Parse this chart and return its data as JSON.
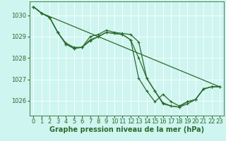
{
  "background_color": "#cef5f0",
  "grid_color": "#ffffff",
  "line_color": "#2d6a2d",
  "xlabel": "Graphe pression niveau de la mer (hPa)",
  "xlabel_fontsize": 7,
  "ylabel_fontsize": 6,
  "tick_fontsize": 6,
  "xlim": [
    -0.5,
    23.5
  ],
  "ylim": [
    1025.3,
    1030.65
  ],
  "yticks": [
    1026,
    1027,
    1028,
    1029,
    1030
  ],
  "xticks": [
    0,
    1,
    2,
    3,
    4,
    5,
    6,
    7,
    8,
    9,
    10,
    11,
    12,
    13,
    14,
    15,
    16,
    17,
    18,
    19,
    20,
    21,
    22,
    23
  ],
  "series": [
    {
      "x": [
        0,
        1,
        2,
        3,
        4,
        5,
        6,
        7,
        8,
        9,
        10,
        11,
        12,
        13,
        14,
        15,
        16,
        17,
        18,
        19,
        20,
        21,
        22,
        23
      ],
      "y": [
        1030.4,
        1030.1,
        1029.9,
        1029.2,
        1028.7,
        1028.5,
        1028.5,
        1028.8,
        1029.0,
        1029.2,
        1029.15,
        1029.1,
        1028.85,
        1028.0,
        1027.05,
        1026.45,
        1025.85,
        1025.75,
        1025.7,
        1025.85,
        1026.05,
        1026.55,
        1026.65,
        1026.65
      ],
      "marker": "+",
      "marker_size": 3.0,
      "linewidth": 0.9
    },
    {
      "x": [
        0,
        1,
        2,
        3,
        4,
        5,
        6,
        7,
        8,
        9,
        10,
        11,
        12,
        13,
        14,
        15,
        16,
        17,
        18,
        19,
        20,
        21,
        22,
        23
      ],
      "y": [
        1030.4,
        1030.1,
        1029.9,
        1029.2,
        1028.65,
        1028.45,
        1028.5,
        1029.0,
        1029.1,
        1029.3,
        1029.2,
        1029.15,
        1029.1,
        1028.75,
        1027.05,
        1026.45,
        1025.9,
        1025.75,
        1025.7,
        1025.95,
        1026.05,
        1026.55,
        1026.65,
        1026.65
      ],
      "marker": "+",
      "marker_size": 3.0,
      "linewidth": 0.9
    },
    {
      "x": [
        0,
        1,
        2,
        3,
        4,
        5,
        6,
        7,
        8,
        9,
        10,
        11,
        12,
        13,
        14,
        15,
        16,
        17,
        18,
        19,
        20,
        21,
        22,
        23
      ],
      "y": [
        1030.4,
        1030.1,
        1029.9,
        1029.2,
        1028.65,
        1028.45,
        1028.5,
        1028.85,
        1029.0,
        1029.2,
        1029.15,
        1029.1,
        1028.85,
        1027.05,
        1026.45,
        1025.95,
        1026.3,
        1025.95,
        1025.75,
        1025.95,
        1026.05,
        1026.55,
        1026.65,
        1026.65
      ],
      "marker": "+",
      "marker_size": 3.0,
      "linewidth": 0.9
    },
    {
      "x": [
        0,
        1,
        23
      ],
      "y": [
        1030.4,
        1030.1,
        1026.65
      ],
      "marker": null,
      "marker_size": 0,
      "linewidth": 0.9
    }
  ],
  "marker_linewidth": 0.8
}
